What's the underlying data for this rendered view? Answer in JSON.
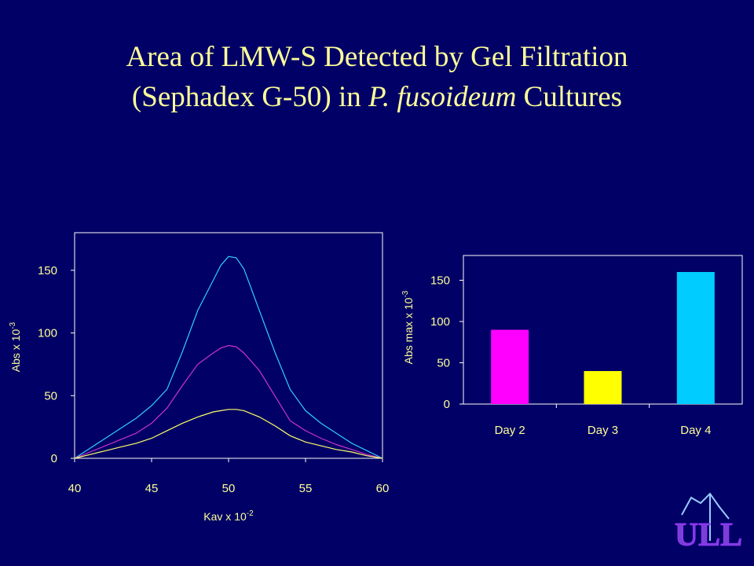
{
  "theme": {
    "background": "#000066",
    "title_color": "#FFFF99",
    "text_color": "#FFFF99",
    "axis_color": "#FFFFFF"
  },
  "title": {
    "line1": "Area of LMW-S Detected by Gel Filtration",
    "line2_pre": "(Sephadex G-50) in ",
    "line2_italic": "P. fusoideum",
    "line2_post": " Cultures"
  },
  "logo": {
    "text": "ULL"
  },
  "chart_data": [
    {
      "type": "line",
      "xlabel": "Kav x 10",
      "xlabel_sup": "-2",
      "ylabel": "Abs x 10",
      "ylabel_sup": "-3",
      "xlim": [
        40,
        60
      ],
      "ylim": [
        0,
        180
      ],
      "xticks": [
        40,
        45,
        50,
        55,
        60
      ],
      "yticks": [
        0,
        50,
        100,
        150
      ],
      "grid": false,
      "series": [
        {
          "color": "#33CCFF",
          "x": [
            40,
            41,
            42,
            43,
            44,
            45,
            46,
            47,
            48,
            49,
            49.5,
            50,
            50.5,
            51,
            52,
            53,
            54,
            55,
            56,
            57,
            58,
            59,
            60
          ],
          "y": [
            0,
            8,
            16,
            24,
            32,
            42,
            55,
            85,
            118,
            142,
            154,
            161,
            160,
            151,
            118,
            85,
            55,
            38,
            28,
            20,
            12,
            6,
            0
          ]
        },
        {
          "color": "#CC33CC",
          "x": [
            40,
            41,
            42,
            43,
            44,
            45,
            46,
            47,
            48,
            49,
            49.5,
            50,
            50.5,
            51,
            52,
            53,
            54,
            55,
            56,
            57,
            58,
            59,
            60
          ],
          "y": [
            0,
            5,
            10,
            15,
            20,
            28,
            40,
            58,
            75,
            84,
            88,
            90,
            89,
            84,
            70,
            50,
            30,
            22,
            16,
            11,
            7,
            3,
            0
          ]
        },
        {
          "color": "#FFFF66",
          "x": [
            40,
            41,
            42,
            43,
            44,
            45,
            46,
            47,
            48,
            49,
            49.5,
            50,
            50.5,
            51,
            52,
            53,
            54,
            55,
            56,
            57,
            58,
            59,
            60
          ],
          "y": [
            0,
            3,
            6,
            9,
            12,
            16,
            22,
            28,
            33,
            37,
            38,
            39,
            39,
            38,
            33,
            26,
            18,
            13,
            10,
            7,
            5,
            2,
            0
          ]
        }
      ]
    },
    {
      "type": "bar",
      "categories": [
        "Day 2",
        "Day 3",
        "Day 4"
      ],
      "values": [
        90,
        40,
        160
      ],
      "colors": [
        "#FF00FF",
        "#FFFF00",
        "#00CCFF"
      ],
      "ylabel": "Abs max x 10",
      "ylabel_sup": "-3",
      "ylim": [
        0,
        180
      ],
      "yticks": [
        0,
        50,
        100,
        150
      ],
      "grid": false
    }
  ]
}
